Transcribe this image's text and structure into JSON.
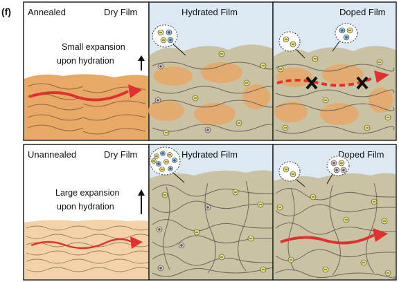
{
  "figure_label": "(f)",
  "rows": [
    {
      "condition": "Annealed",
      "expansion_note": [
        "Small expansion",
        "upon hydration"
      ],
      "panels": [
        {
          "title": "Dry Film",
          "ion_cluster": []
        },
        {
          "title": "Hydrated Film",
          "ion_cluster": [
            "minus",
            "plus",
            "minus",
            "plus"
          ]
        },
        {
          "title": "Doped Film",
          "ion_cluster": [
            "minus",
            "minus"
          ],
          "secondary_cluster": [
            "minus",
            "plus",
            "minus"
          ]
        }
      ],
      "transport": "blocked"
    },
    {
      "condition": "Unannealed",
      "expansion_note": [
        "Large expansion",
        "upon hydration"
      ],
      "panels": [
        {
          "title": "Dry Film",
          "ion_cluster": []
        },
        {
          "title": "Hydrated Film",
          "ion_cluster": [
            "minus",
            "plus",
            "minus",
            "plus",
            "minus",
            "plus",
            "minus",
            "plus",
            "minus"
          ]
        },
        {
          "title": "Doped Film",
          "ion_cluster": [
            "minus",
            "minus"
          ],
          "secondary_cluster": [
            "plus",
            "minus",
            "plus",
            "plus"
          ]
        }
      ],
      "transport": "continuous"
    }
  ],
  "colors": {
    "frame": "#222222",
    "water": "#dce9f2",
    "film": "#c9c2a3",
    "crystal": "#e8a866",
    "crystal_light": "#f3d2a9",
    "chain": "#6b6660",
    "arrow": "#e23030",
    "block": "#111111"
  },
  "icons": {
    "expansion": "up-arrow-icon",
    "blocked_transport": "x-mark-icon",
    "anion": "minus-circle-icon",
    "cation": "plus-circle-icon"
  }
}
